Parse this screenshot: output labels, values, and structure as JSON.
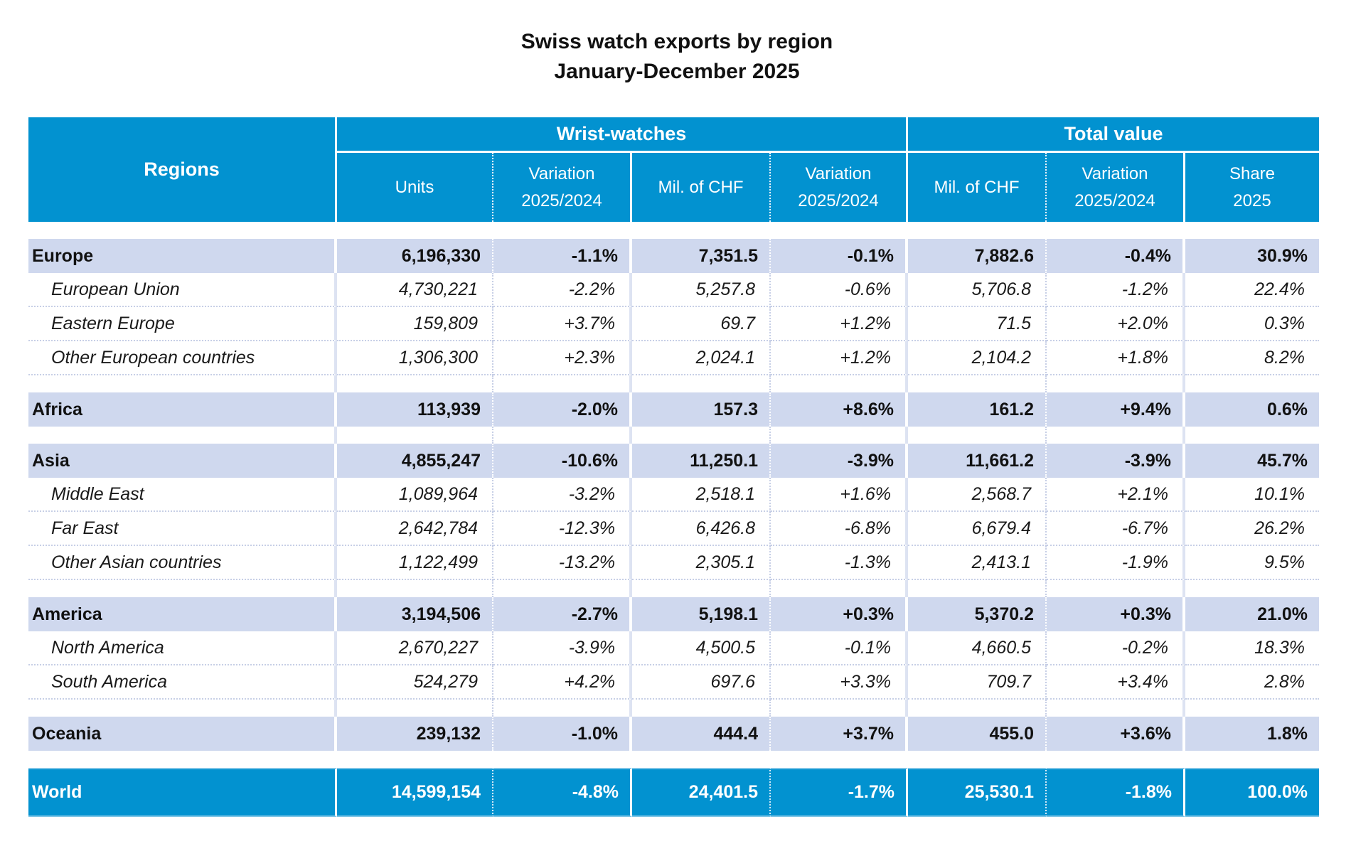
{
  "title": {
    "line1": "Swiss watch exports by region",
    "line2": "January-December 2025"
  },
  "header": {
    "regions": "Regions",
    "group_wrist": "Wrist-watches",
    "group_total": "Total value",
    "columns": [
      {
        "l1": "Units",
        "l2": ""
      },
      {
        "l1": "Variation",
        "l2": "2025/2024"
      },
      {
        "l1": "Mil. of CHF",
        "l2": ""
      },
      {
        "l1": "Variation",
        "l2": "2025/2024"
      },
      {
        "l1": "Mil. of CHF",
        "l2": ""
      },
      {
        "l1": "Variation",
        "l2": "2025/2024"
      },
      {
        "l1": "Share",
        "l2": "2025"
      }
    ]
  },
  "colors": {
    "header_bg": "#0292d0",
    "region_row_bg": "#cfd8ee"
  },
  "rows": [
    {
      "type": "region",
      "name": "Europe",
      "values": [
        "6,196,330",
        "-1.1%",
        "7,351.5",
        "-0.1%",
        "7,882.6",
        "-0.4%",
        "30.9%"
      ]
    },
    {
      "type": "sub",
      "name": "European Union",
      "values": [
        "4,730,221",
        "-2.2%",
        "5,257.8",
        "-0.6%",
        "5,706.8",
        "-1.2%",
        "22.4%"
      ]
    },
    {
      "type": "sub",
      "name": "Eastern Europe",
      "values": [
        "159,809",
        "+3.7%",
        "69.7",
        "+1.2%",
        "71.5",
        "+2.0%",
        "0.3%"
      ]
    },
    {
      "type": "sub",
      "name": "Other European countries",
      "values": [
        "1,306,300",
        "+2.3%",
        "2,024.1",
        "+1.2%",
        "2,104.2",
        "+1.8%",
        "8.2%"
      ]
    },
    {
      "type": "spacer"
    },
    {
      "type": "region",
      "name": "Africa",
      "values": [
        "113,939",
        "-2.0%",
        "157.3",
        "+8.6%",
        "161.2",
        "+9.4%",
        "0.6%"
      ]
    },
    {
      "type": "spacer"
    },
    {
      "type": "region",
      "name": "Asia",
      "values": [
        "4,855,247",
        "-10.6%",
        "11,250.1",
        "-3.9%",
        "11,661.2",
        "-3.9%",
        "45.7%"
      ]
    },
    {
      "type": "sub",
      "name": "Middle East",
      "values": [
        "1,089,964",
        "-3.2%",
        "2,518.1",
        "+1.6%",
        "2,568.7",
        "+2.1%",
        "10.1%"
      ]
    },
    {
      "type": "sub",
      "name": "Far East",
      "values": [
        "2,642,784",
        "-12.3%",
        "6,426.8",
        "-6.8%",
        "6,679.4",
        "-6.7%",
        "26.2%"
      ]
    },
    {
      "type": "sub",
      "name": "Other Asian countries",
      "values": [
        "1,122,499",
        "-13.2%",
        "2,305.1",
        "-1.3%",
        "2,413.1",
        "-1.9%",
        "9.5%"
      ]
    },
    {
      "type": "spacer"
    },
    {
      "type": "region",
      "name": "America",
      "values": [
        "3,194,506",
        "-2.7%",
        "5,198.1",
        "+0.3%",
        "5,370.2",
        "+0.3%",
        "21.0%"
      ]
    },
    {
      "type": "sub",
      "name": "North America",
      "values": [
        "2,670,227",
        "-3.9%",
        "4,500.5",
        "-0.1%",
        "4,660.5",
        "-0.2%",
        "18.3%"
      ]
    },
    {
      "type": "sub",
      "name": "South America",
      "values": [
        "524,279",
        "+4.2%",
        "697.6",
        "+3.3%",
        "709.7",
        "+3.4%",
        "2.8%"
      ]
    },
    {
      "type": "spacer"
    },
    {
      "type": "region",
      "name": "Oceania",
      "values": [
        "239,132",
        "-1.0%",
        "444.4",
        "+3.7%",
        "455.0",
        "+3.6%",
        "1.8%"
      ]
    }
  ],
  "world": {
    "name": "World",
    "values": [
      "14,599,154",
      "-4.8%",
      "24,401.5",
      "-1.7%",
      "25,530.1",
      "-1.8%",
      "100.0%"
    ]
  }
}
